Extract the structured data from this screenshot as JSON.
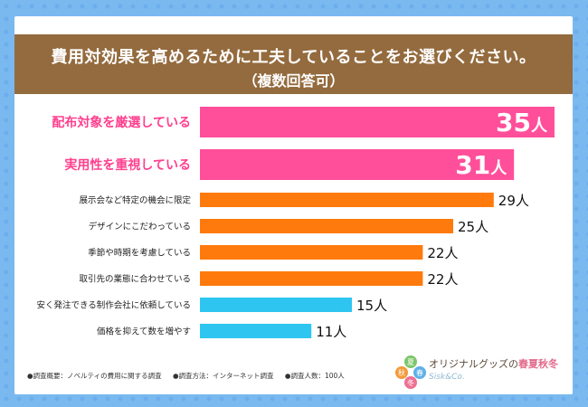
{
  "title": {
    "line1": "費用対効果を高めるために工夫していることをお選びください。",
    "line2": "（複数回答可）"
  },
  "chart_data": {
    "type": "bar",
    "orientation": "horizontal",
    "title": "費用対効果を高めるために工夫していることをお選びください。（複数回答可）",
    "unit": "人",
    "categories": [
      "配布対象を厳選している",
      "実用性を重視している",
      "展示会など特定の機会に限定",
      "デザインにこだわっている",
      "季節や時期を考慮している",
      "取引先の業態に合わせている",
      "安く発注できる制作会社に依頼している",
      "価格を抑えて数を増やす"
    ],
    "values": [
      35,
      31,
      29,
      25,
      22,
      22,
      15,
      11
    ],
    "value_labels": [
      "35人",
      "31人",
      "29人",
      "25人",
      "22人",
      "22人",
      "15人",
      "11人"
    ],
    "colors": [
      "#ff4f9a",
      "#ff4f9a",
      "#ff7a0c",
      "#ff7a0c",
      "#ff7a0c",
      "#ff7a0c",
      "#2ec6f0",
      "#2ec6f0"
    ],
    "highlight": [
      true,
      true,
      false,
      false,
      false,
      false,
      false,
      false
    ],
    "xlim": [
      0,
      35
    ]
  },
  "footer": {
    "item1": "●調査概要：ノベルティの費用に関する調査",
    "item2": "●調査方法：インターネット調査",
    "item3": "●調査人数：100人"
  },
  "logo": {
    "text_main": "オリジナルグッズの",
    "text_season": "春夏秋冬",
    "text_sub": "Sisk&Co.",
    "badge_chars": [
      "夏",
      "秋",
      "春",
      "冬"
    ]
  }
}
